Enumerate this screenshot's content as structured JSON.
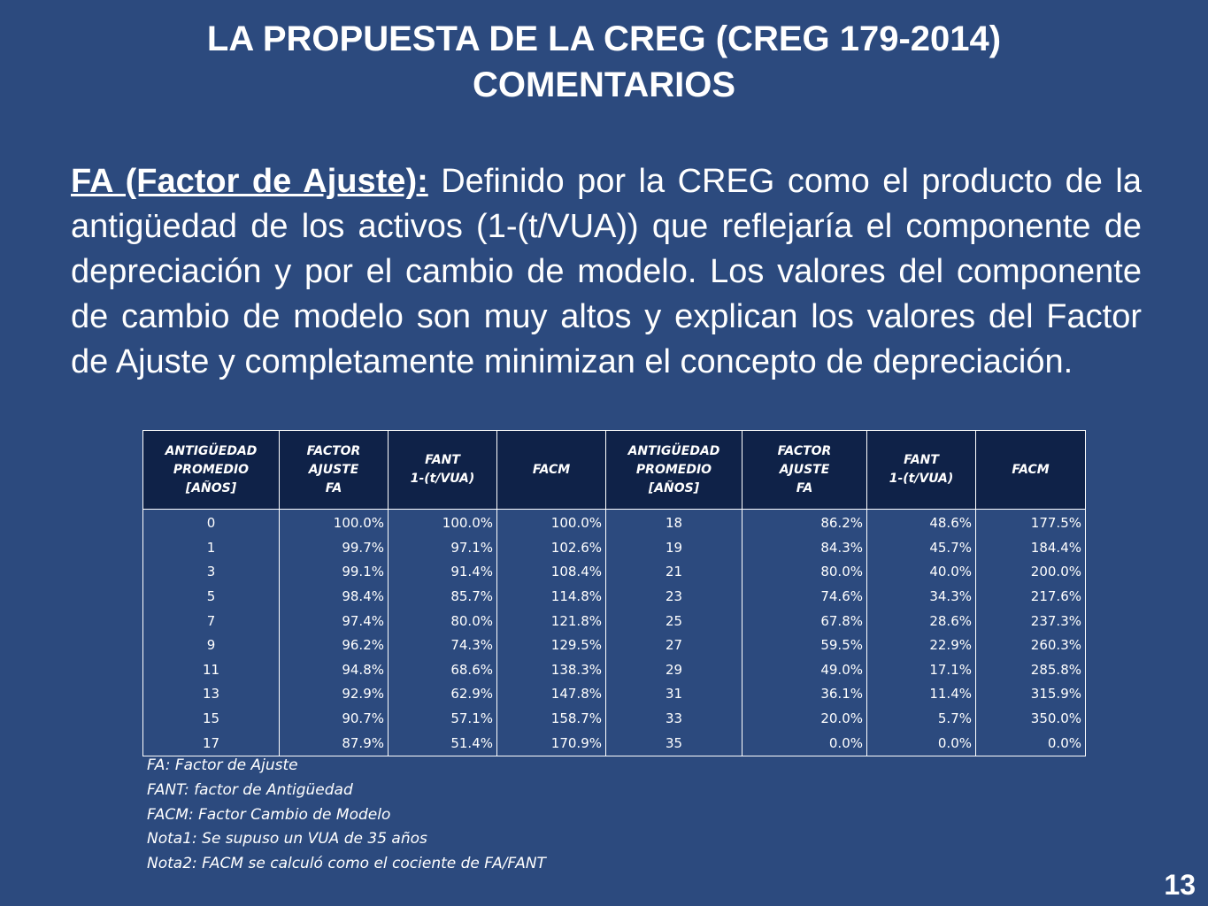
{
  "slide": {
    "title_line1": "LA PROPUESTA DE LA CREG (CREG 179-2014)",
    "title_line2": "COMENTARIOS",
    "term": "FA (Factor de Ajuste):",
    "body": " Definido por la CREG como el producto de la antigüedad de los activos (1-(t/VUA)) que reflejaría el componente de depreciación y  por el cambio de modelo. Los valores del componente de cambio de modelo son muy altos y explican los valores del Factor de Ajuste y completamente minimizan el concepto de depreciación.",
    "page_number": "13"
  },
  "table": {
    "headers": [
      [
        "ANTIGÜEDAD",
        "PROMEDIO",
        "[AÑOS]"
      ],
      [
        "FACTOR",
        "AJUSTE",
        "FA"
      ],
      [
        "FANT",
        "1-(t/VUA)"
      ],
      [
        "FACM"
      ],
      [
        "ANTIGÜEDAD",
        "PROMEDIO",
        "[AÑOS]"
      ],
      [
        "FACTOR",
        "AJUSTE",
        "FA"
      ],
      [
        "FANT",
        "1-(t/VUA)"
      ],
      [
        "FACM"
      ]
    ],
    "rows": [
      [
        "0",
        "100.0%",
        "100.0%",
        "100.0%",
        "18",
        "86.2%",
        "48.6%",
        "177.5%"
      ],
      [
        "1",
        "99.7%",
        "97.1%",
        "102.6%",
        "19",
        "84.3%",
        "45.7%",
        "184.4%"
      ],
      [
        "3",
        "99.1%",
        "91.4%",
        "108.4%",
        "21",
        "80.0%",
        "40.0%",
        "200.0%"
      ],
      [
        "5",
        "98.4%",
        "85.7%",
        "114.8%",
        "23",
        "74.6%",
        "34.3%",
        "217.6%"
      ],
      [
        "7",
        "97.4%",
        "80.0%",
        "121.8%",
        "25",
        "67.8%",
        "28.6%",
        "237.3%"
      ],
      [
        "9",
        "96.2%",
        "74.3%",
        "129.5%",
        "27",
        "59.5%",
        "22.9%",
        "260.3%"
      ],
      [
        "11",
        "94.8%",
        "68.6%",
        "138.3%",
        "29",
        "49.0%",
        "17.1%",
        "285.8%"
      ],
      [
        "13",
        "92.9%",
        "62.9%",
        "147.8%",
        "31",
        "36.1%",
        "11.4%",
        "315.9%"
      ],
      [
        "15",
        "90.7%",
        "57.1%",
        "158.7%",
        "33",
        "20.0%",
        "5.7%",
        "350.0%"
      ],
      [
        "17",
        "87.9%",
        "51.4%",
        "170.9%",
        "35",
        "0.0%",
        "0.0%",
        "0.0%"
      ]
    ]
  },
  "notes": [
    "FA: Factor de Ajuste",
    "FANT: factor de Antigüedad",
    "FACM: Factor Cambio de Modelo",
    "Nota1: Se supuso un VUA de 35 años",
    "Nota2: FACM se calculó como el cociente de FA/FANT"
  ],
  "colors": {
    "background": "#2c4a7e",
    "table_header": "#0f2248",
    "text": "#ffffff"
  }
}
